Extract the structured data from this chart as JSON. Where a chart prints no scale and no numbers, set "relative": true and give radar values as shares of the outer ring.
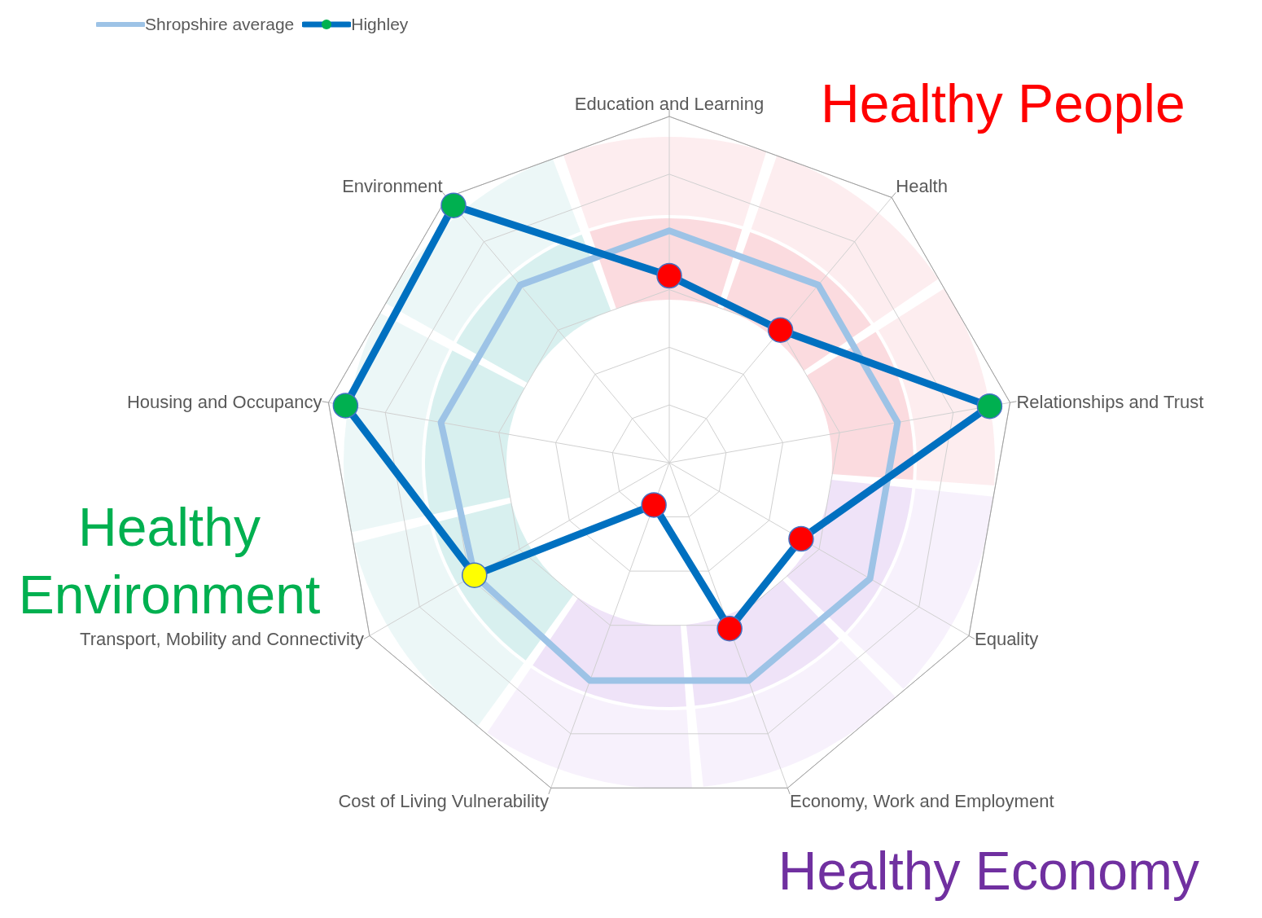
{
  "chart_data": {
    "type": "radar",
    "relative": true,
    "legend": "top left",
    "grid": true,
    "categories": [
      "Education and Learning",
      "Health",
      "Relationships and Trust",
      "Equality",
      "Economy, Work and Employment",
      "Cost of Living Vulnerability",
      "Transport, Mobility and Connectivity",
      "Housing and Occupancy",
      "Environment"
    ],
    "series": [
      {
        "name": "Shropshire average",
        "color": "#9dc3e6",
        "marker": "none",
        "values": [
          0.67,
          0.67,
          0.67,
          0.67,
          0.67,
          0.67,
          0.65,
          0.67,
          0.67
        ]
      },
      {
        "name": "Highley",
        "color": "#0070c0",
        "marker": "circle",
        "colors": [
          "#ff0000",
          "#ff0000",
          "#00b050",
          "#ff0000",
          "#ff0000",
          "#ff0000",
          "#ffff00",
          "#00b050",
          "#00b050"
        ],
        "values": [
          0.54,
          0.5,
          0.94,
          0.44,
          0.51,
          0.13,
          0.65,
          0.95,
          0.97
        ]
      }
    ],
    "annotations": [
      "Healthy People",
      "Healthy Environment",
      "Healthy Economy"
    ]
  }
}
